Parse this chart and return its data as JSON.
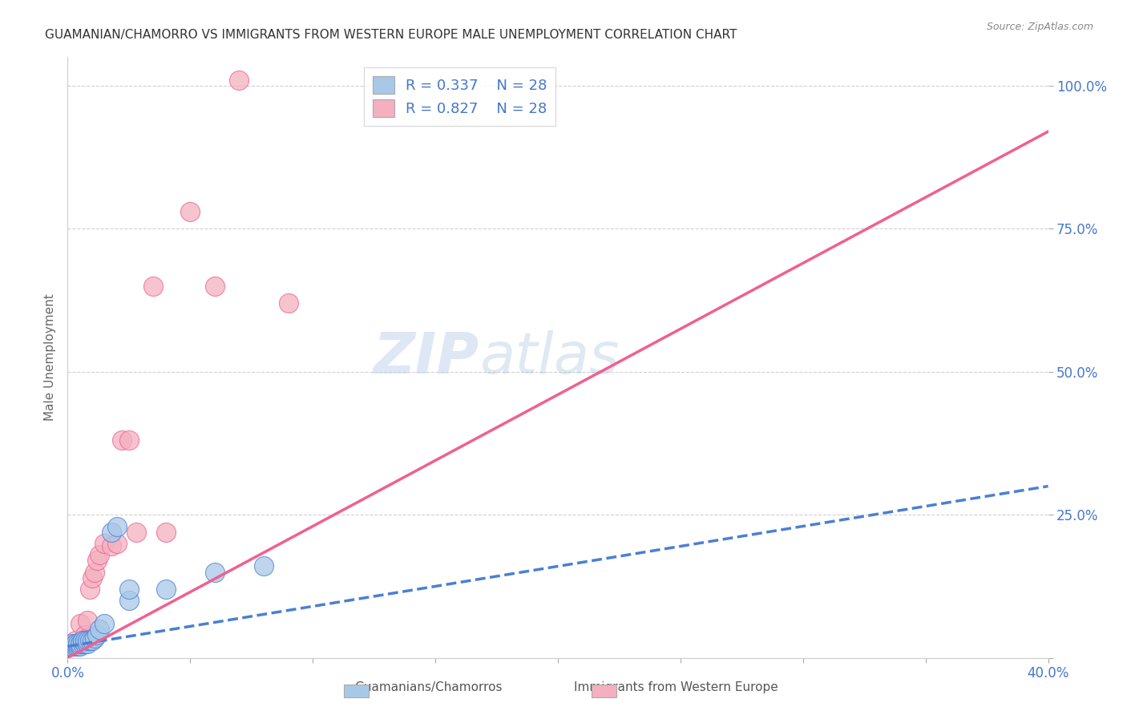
{
  "title": "GUAMANIAN/CHAMORRO VS IMMIGRANTS FROM WESTERN EUROPE MALE UNEMPLOYMENT CORRELATION CHART",
  "source": "Source: ZipAtlas.com",
  "ylabel": "Male Unemployment",
  "xlim": [
    0.0,
    0.4
  ],
  "ylim": [
    0.0,
    1.05
  ],
  "ytick_labels": [
    "",
    "25.0%",
    "50.0%",
    "75.0%",
    "100.0%"
  ],
  "ytick_vals": [
    0.0,
    0.25,
    0.5,
    0.75,
    1.0
  ],
  "xtick_vals": [
    0.0,
    0.05,
    0.1,
    0.15,
    0.2,
    0.25,
    0.3,
    0.35,
    0.4
  ],
  "xtick_labels": [
    "0.0%",
    "",
    "",
    "",
    "",
    "",
    "",
    "",
    "40.0%"
  ],
  "legend_R1": "R = 0.337",
  "legend_N1": "N = 28",
  "legend_R2": "R = 0.827",
  "legend_N2": "N = 28",
  "legend_label1": "Guamanians/Chamorros",
  "legend_label2": "Immigrants from Western Europe",
  "blue_color": "#a8c8e8",
  "pink_color": "#f4b0c0",
  "blue_line_color": "#4a7fd4",
  "pink_line_color": "#f06090",
  "axis_color": "#4477cc",
  "watermark_zip": "ZIP",
  "watermark_atlas": "atlas",
  "blue_x": [
    0.001,
    0.002,
    0.002,
    0.003,
    0.003,
    0.004,
    0.004,
    0.005,
    0.005,
    0.006,
    0.006,
    0.007,
    0.007,
    0.008,
    0.008,
    0.009,
    0.01,
    0.011,
    0.012,
    0.013,
    0.015,
    0.018,
    0.02,
    0.025,
    0.025,
    0.04,
    0.06,
    0.08
  ],
  "blue_y": [
    0.02,
    0.02,
    0.025,
    0.02,
    0.025,
    0.02,
    0.025,
    0.02,
    0.025,
    0.025,
    0.03,
    0.025,
    0.03,
    0.025,
    0.03,
    0.03,
    0.03,
    0.035,
    0.04,
    0.05,
    0.06,
    0.22,
    0.23,
    0.1,
    0.12,
    0.12,
    0.15,
    0.16
  ],
  "pink_x": [
    0.001,
    0.002,
    0.003,
    0.003,
    0.004,
    0.005,
    0.005,
    0.006,
    0.007,
    0.008,
    0.008,
    0.009,
    0.01,
    0.011,
    0.012,
    0.013,
    0.015,
    0.018,
    0.02,
    0.022,
    0.025,
    0.028,
    0.035,
    0.04,
    0.05,
    0.06,
    0.07,
    0.09
  ],
  "pink_y": [
    0.02,
    0.02,
    0.025,
    0.03,
    0.02,
    0.025,
    0.06,
    0.03,
    0.04,
    0.035,
    0.065,
    0.12,
    0.14,
    0.15,
    0.17,
    0.18,
    0.2,
    0.195,
    0.2,
    0.38,
    0.38,
    0.22,
    0.65,
    0.22,
    0.78,
    0.65,
    1.01,
    0.62
  ],
  "blue_trend_x": [
    0.0,
    0.4
  ],
  "blue_trend_y": [
    0.02,
    0.3
  ],
  "pink_trend_x": [
    0.0,
    0.4
  ],
  "pink_trend_y": [
    0.0,
    0.92
  ]
}
